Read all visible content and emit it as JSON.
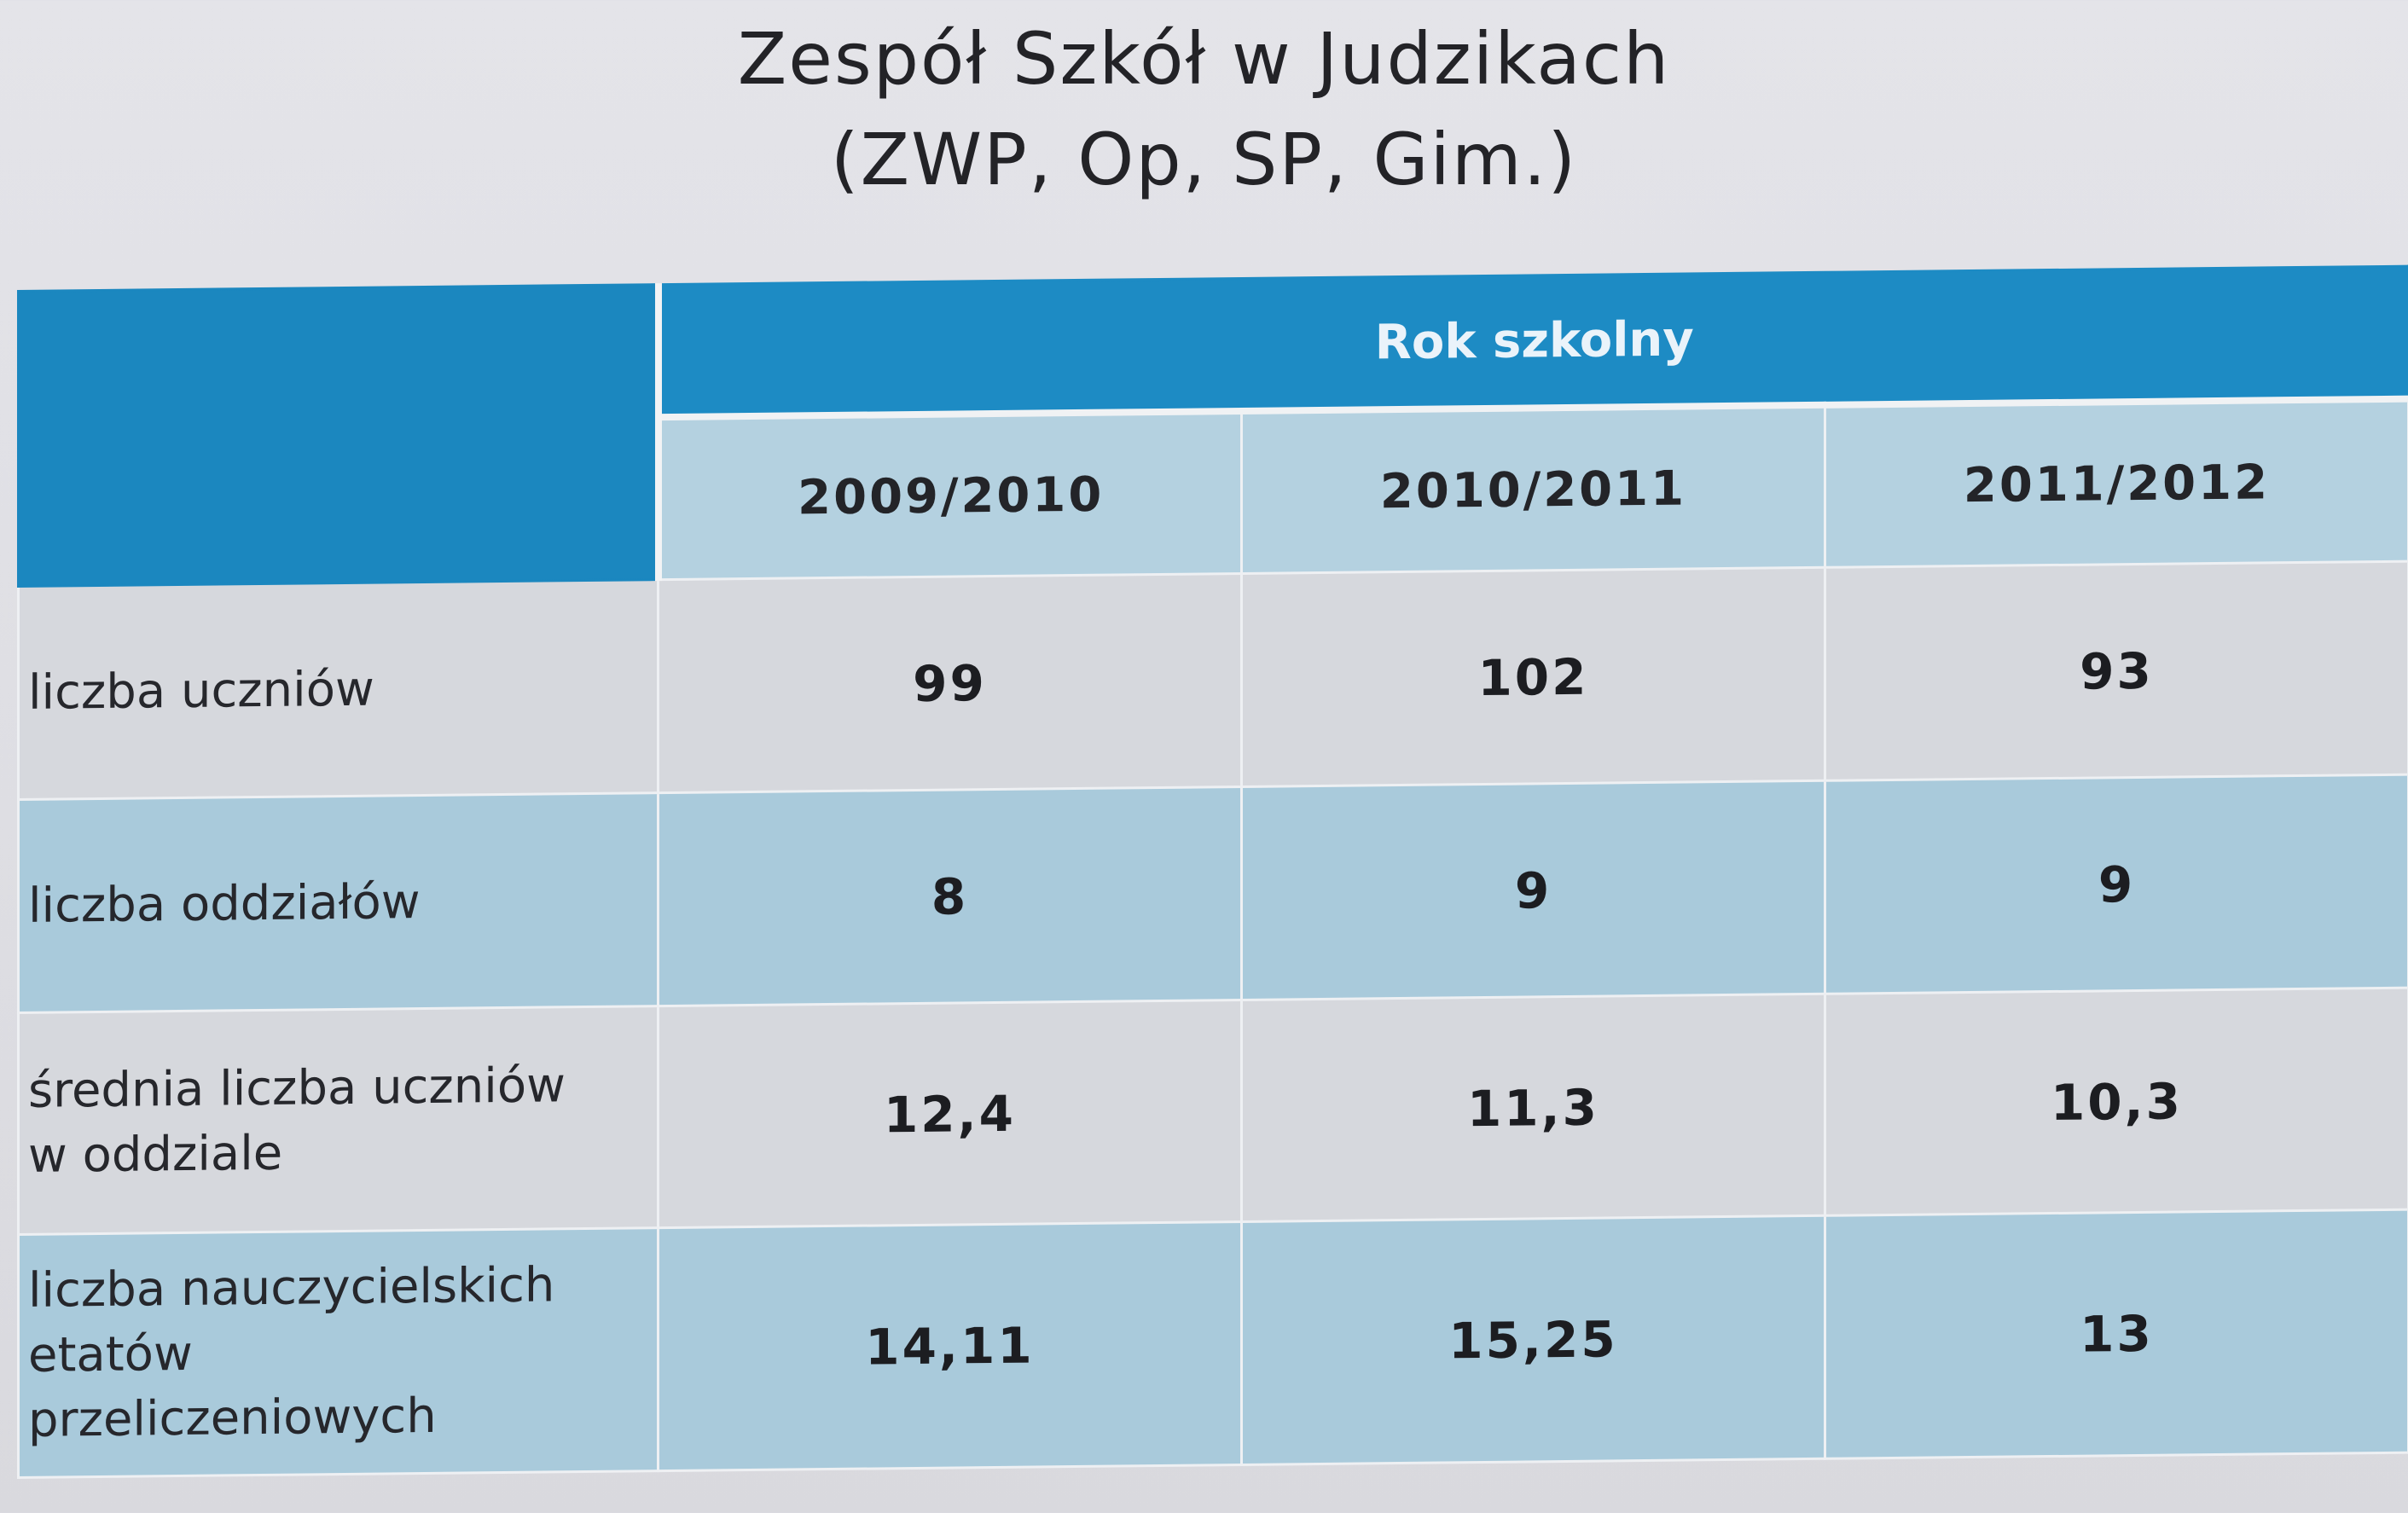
{
  "title": {
    "line1": "Zespół Szkół w Judzikach",
    "line2": "(ZWP, Op, SP, Gim.)"
  },
  "table": {
    "group_header": "Rok szkolny",
    "years": [
      "2009/2010",
      "2010/2011",
      "2011/2012"
    ],
    "rows": [
      {
        "label": "liczba uczniów",
        "values": [
          "99",
          "102",
          "93"
        ]
      },
      {
        "label": "liczba oddziałów",
        "values": [
          "8",
          "9",
          "9"
        ]
      },
      {
        "label": "średnia liczba uczniów\nw oddziale",
        "values": [
          "12,4",
          "11,3",
          "10,3"
        ]
      },
      {
        "label": "liczba nauczycielskich\netatów\nprzeliczeniowych",
        "values": [
          "14,11",
          "15,25",
          "13"
        ]
      }
    ]
  },
  "colors": {
    "header_blue": "#1d8bc4",
    "year_row": "#b4d1e0",
    "row_grey": "#d6d8dd",
    "row_blue": "#a9cadb"
  }
}
